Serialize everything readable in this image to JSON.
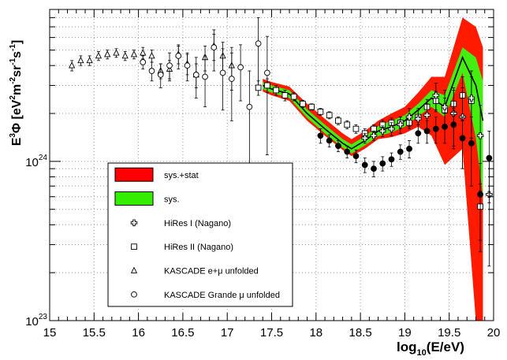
{
  "chart_data": {
    "type": "scatter",
    "xlabel": "log10(E/eV)",
    "ylabel": "E3Φ [eV2m-2sr-1s-1]",
    "y_scale": "log",
    "xlim": [
      15,
      20
    ],
    "ylim": [
      1e+23,
      9e+24
    ],
    "x_ticks": [
      "15",
      "15.5",
      "16",
      "16.5",
      "17",
      "17.5",
      "18",
      "18.5",
      "19",
      "19.5",
      "20"
    ],
    "y_ticks": [
      {
        "value": 1e+23,
        "base": "10",
        "exp": "23"
      },
      {
        "value": 1e+24,
        "base": "10",
        "exp": "24"
      }
    ],
    "grid": true,
    "legend_position": "lower-left",
    "legend": [
      {
        "label": "sys.+stat",
        "kind": "band",
        "color": "#ff0000"
      },
      {
        "label": "sys.",
        "kind": "band",
        "color": "#33ee00"
      },
      {
        "label": "HiRes I (Nagano)",
        "kind": "cross"
      },
      {
        "label": "HiRes II (Nagano)",
        "kind": "square"
      },
      {
        "label": "KASCADE e+μ unfolded",
        "kind": "triangle"
      },
      {
        "label": "KASCADE Grande μ unfolded",
        "kind": "circle"
      }
    ],
    "bands": {
      "x": [
        17.4,
        17.5,
        17.7,
        17.9,
        18.1,
        18.3,
        18.4,
        18.55,
        18.7,
        18.85,
        19.0,
        19.15,
        19.3,
        19.45,
        19.65,
        19.8,
        19.88
      ],
      "central": [
        3e+24,
        2.85e+24,
        2.65e+24,
        2e+24,
        1.6e+24,
        1.3e+24,
        1.2e+24,
        1.35e+24,
        1.55e+24,
        1.65e+24,
        1.8e+24,
        2.1e+24,
        2.5e+24,
        2.2e+24,
        4.5e+24,
        3e+24,
        1.8e+24
      ],
      "sys_low": [
        2.85e+24,
        2.7e+24,
        2.5e+24,
        1.88e+24,
        1.5e+24,
        1.22e+24,
        1.12e+24,
        1.26e+24,
        1.44e+24,
        1.52e+24,
        1.65e+24,
        1.92e+24,
        2.2e+24,
        1.9e+24,
        3.6e+24,
        1.4e+24,
        6e+23
      ],
      "sys_high": [
        3.15e+24,
        3e+24,
        2.8e+24,
        2.12e+24,
        1.7e+24,
        1.38e+24,
        1.28e+24,
        1.44e+24,
        1.66e+24,
        1.8e+24,
        1.95e+24,
        2.3e+24,
        2.8e+24,
        2.6e+24,
        5.2e+24,
        4.5e+24,
        3.2e+24
      ],
      "stat_low": [
        2.75e+24,
        2.6e+24,
        2.4e+24,
        1.8e+24,
        1.45e+24,
        1.18e+24,
        1.08e+24,
        1.2e+24,
        1.38e+24,
        1.42e+24,
        1.5e+24,
        1.65e+24,
        1.45e+24,
        9.5e+23,
        1.2e+24,
        1e+23,
        1e+23
      ],
      "stat_high": [
        3.3e+24,
        3.15e+24,
        2.95e+24,
        2.3e+24,
        1.85e+24,
        1.5e+24,
        1.38e+24,
        1.55e+24,
        1.8e+24,
        2e+24,
        2.2e+24,
        2.7e+24,
        3.4e+24,
        3.4e+24,
        8e+24,
        7e+24,
        5.2e+24
      ]
    },
    "series": [
      {
        "name": "KASCADE e+μ unfolded",
        "marker": "triangle",
        "points": [
          [
            15.25,
            4e+24,
            3e+23
          ],
          [
            15.35,
            4.3e+24,
            3e+23
          ],
          [
            15.45,
            4.3e+24,
            3e+23
          ],
          [
            15.55,
            4.6e+24,
            3e+23
          ],
          [
            15.65,
            4.7e+24,
            3e+23
          ],
          [
            15.75,
            4.8e+24,
            3e+23
          ],
          [
            15.85,
            4.6e+24,
            3e+23
          ],
          [
            15.95,
            4.7e+24,
            3e+23
          ],
          [
            16.05,
            4.8e+24,
            4e+23
          ],
          [
            16.15,
            4.6e+24,
            4e+23
          ],
          [
            16.25,
            3.7e+24,
            4e+23
          ],
          [
            16.35,
            3.8e+24,
            5e+23
          ],
          [
            16.45,
            4.7e+24,
            6e+23
          ],
          [
            16.55,
            4.1e+24,
            6e+23
          ],
          [
            16.65,
            3.5e+24,
            6e+23
          ],
          [
            16.75,
            4.5e+24,
            8e+23
          ],
          [
            16.85,
            5.3e+24,
            1e+24
          ],
          [
            16.95,
            4.6e+24,
            1e+24
          ],
          [
            17.05,
            4e+24,
            1.2e+24
          ]
        ]
      },
      {
        "name": "KASCADE Grande μ unfolded",
        "marker": "circle",
        "points": [
          [
            16.05,
            4.2e+24,
            4e+23
          ],
          [
            16.15,
            3.7e+24,
            5e+23
          ],
          [
            16.25,
            3.5e+24,
            6e+23
          ],
          [
            16.35,
            4e+24,
            8e+23
          ],
          [
            16.45,
            4.6e+24,
            8e+23
          ],
          [
            16.55,
            4e+24,
            8e+23
          ],
          [
            16.65,
            3.5e+24,
            1e+24
          ],
          [
            16.75,
            3.4e+24,
            1.2e+24
          ],
          [
            16.85,
            5.2e+24,
            1.5e+24
          ],
          [
            16.95,
            3.6e+24,
            1.5e+24
          ],
          [
            17.05,
            3.3e+24,
            1.5e+24
          ],
          [
            17.15,
            3.9e+24,
            1.5e+24
          ],
          [
            17.25,
            2.2e+24,
            1.5e+24
          ],
          [
            17.35,
            5.5e+24,
            2.5e+24
          ],
          [
            17.45,
            3.6e+24,
            2.5e+24
          ]
        ]
      },
      {
        "name": "HiRes II (Nagano)",
        "marker": "square",
        "points": [
          [
            17.35,
            2.9e+24,
            3e+23
          ],
          [
            17.45,
            3e+24,
            3e+23
          ],
          [
            17.55,
            2.8e+24,
            2e+23
          ],
          [
            17.65,
            2.6e+24,
            2e+23
          ],
          [
            17.75,
            2.55e+24,
            1.5e+23
          ],
          [
            17.85,
            2.3e+24,
            1.2e+23
          ],
          [
            17.95,
            2.2e+24,
            1e+23
          ],
          [
            18.05,
            2.05e+24,
            1e+23
          ],
          [
            18.15,
            1.95e+24,
            1e+23
          ],
          [
            18.25,
            1.8e+24,
            1e+23
          ],
          [
            18.35,
            1.7e+24,
            1e+23
          ],
          [
            18.45,
            1.6e+24,
            1e+23
          ],
          [
            18.55,
            1.5e+24,
            1e+23
          ],
          [
            18.65,
            1.6e+24,
            1e+23
          ],
          [
            18.75,
            1.7e+24,
            1.2e+23
          ],
          [
            18.85,
            1.75e+24,
            1.2e+23
          ],
          [
            18.95,
            1.75e+24,
            1.5e+23
          ],
          [
            19.05,
            1.75e+24,
            1.5e+23
          ],
          [
            19.15,
            1.9e+24,
            2e+23
          ],
          [
            19.25,
            2.2e+24,
            2.5e+23
          ],
          [
            19.35,
            2.4e+24,
            3.5e+23
          ],
          [
            19.45,
            2.1e+24,
            4e+23
          ],
          [
            19.55,
            2.3e+24,
            6e+23
          ],
          [
            19.65,
            2.6e+24,
            8e+23
          ],
          [
            19.75,
            2.4e+24,
            1e+24
          ],
          [
            19.85,
            5.2e+23,
            2e+23
          ]
        ]
      },
      {
        "name": "HiRes I (Nagano)",
        "marker": "cross",
        "points": [
          [
            18.55,
            1.4e+24,
            1e+23
          ],
          [
            18.65,
            1.45e+24,
            1e+23
          ],
          [
            18.75,
            1.55e+24,
            1.2e+23
          ],
          [
            18.85,
            1.6e+24,
            1.5e+23
          ],
          [
            18.95,
            1.7e+24,
            2e+23
          ],
          [
            19.05,
            1.9e+24,
            2.5e+23
          ],
          [
            19.15,
            1.85e+24,
            3e+23
          ],
          [
            19.25,
            1.95e+24,
            3.5e+23
          ],
          [
            19.35,
            2.6e+24,
            5e+23
          ],
          [
            19.45,
            2.2e+24,
            6e+23
          ],
          [
            19.55,
            2e+24,
            8e+23
          ],
          [
            19.65,
            1.9e+24,
            1e+24
          ],
          [
            19.75,
            2.5e+24,
            1.2e+24
          ],
          [
            19.85,
            1.45e+24,
            8e+23
          ],
          [
            19.95,
            6.2e+23,
            4e+23
          ]
        ]
      },
      {
        "name": "",
        "marker": "filled-circle",
        "points": [
          [
            18.05,
            1.45e+24,
            1.5e+23
          ],
          [
            18.15,
            1.35e+24,
            1.2e+23
          ],
          [
            18.25,
            1.25e+24,
            1e+23
          ],
          [
            18.35,
            1.15e+24,
            1e+23
          ],
          [
            18.45,
            1.08e+24,
            1e+23
          ],
          [
            18.55,
            9.5e+23,
            1e+23
          ],
          [
            18.65,
            9e+23,
            1e+23
          ],
          [
            18.75,
            9.7e+23,
            1e+23
          ],
          [
            18.85,
            1.03e+24,
            1e+23
          ],
          [
            18.95,
            1.15e+24,
            1.2e+23
          ],
          [
            19.05,
            1.2e+24,
            1.5e+23
          ],
          [
            19.15,
            1.5e+24,
            2e+23
          ],
          [
            19.25,
            1.55e+24,
            2.5e+23
          ],
          [
            19.35,
            1.6e+24,
            3e+23
          ],
          [
            19.45,
            1.65e+24,
            3.5e+23
          ],
          [
            19.55,
            1.7e+24,
            4.5e+23
          ],
          [
            19.65,
            1.4e+24,
            5e+23
          ],
          [
            19.75,
            1.3e+24,
            6e+23
          ],
          [
            19.85,
            6.2e+23,
            3.5e+23
          ],
          [
            19.95,
            1.05e+24,
            5e+23
          ]
        ]
      }
    ]
  }
}
